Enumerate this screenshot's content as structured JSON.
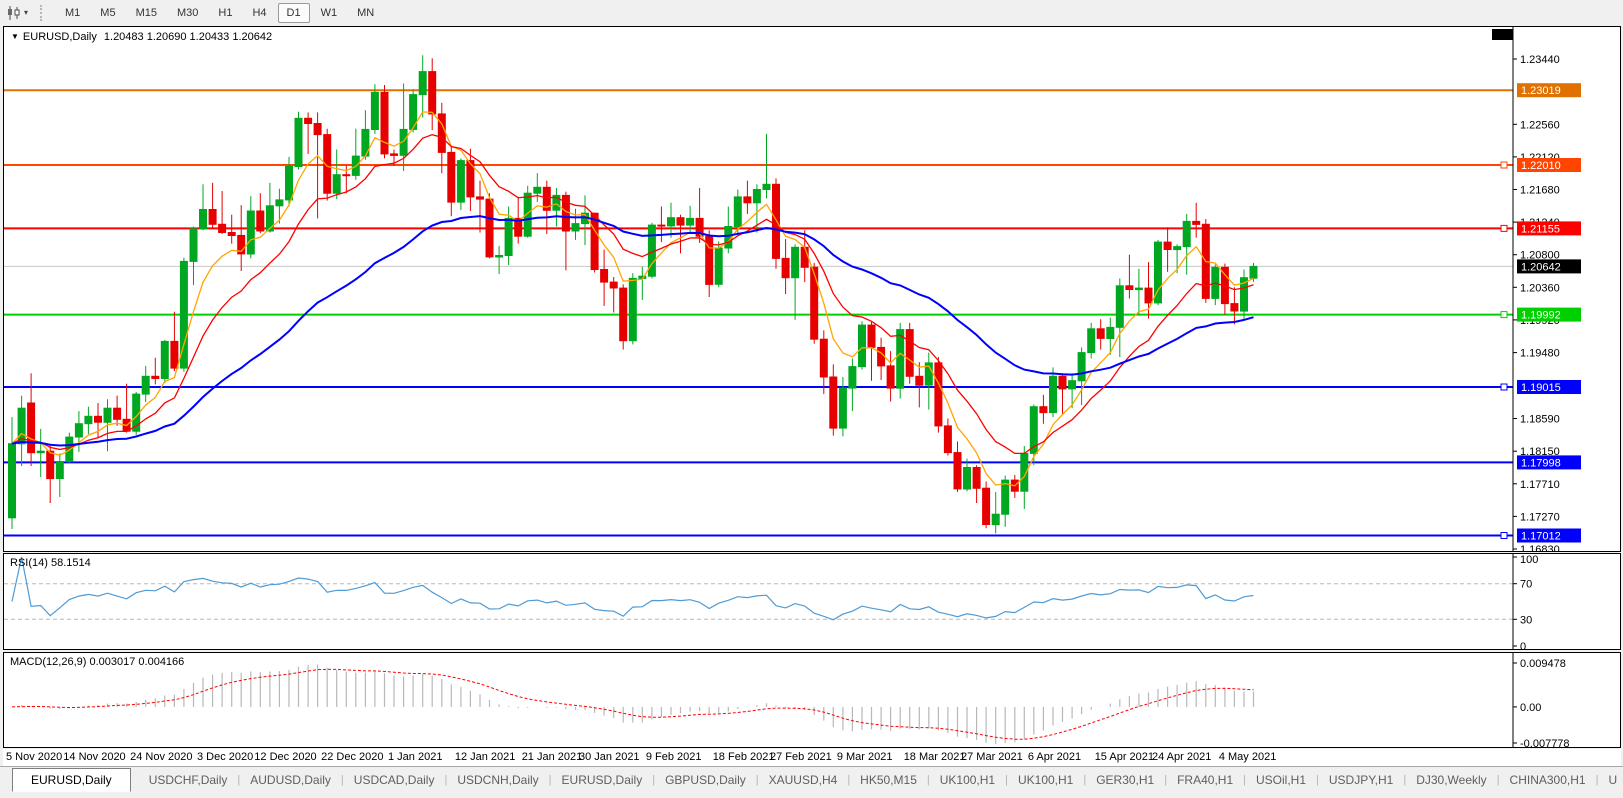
{
  "toolbar": {
    "chart_tool_icon": "candlestick-chart-icon",
    "dropdown_caret": "▾",
    "timeframes": [
      "M1",
      "M5",
      "M15",
      "M30",
      "H1",
      "H4",
      "D1",
      "W1",
      "MN"
    ],
    "active_timeframe": "D1"
  },
  "chart_header": {
    "collapse_caret": "▼",
    "title": "EURUSD,Daily",
    "ohlc": "1.20483 1.20690 1.20433 1.20642"
  },
  "price_axis": {
    "ticks": [
      "1.23440",
      "1.22560",
      "1.22120",
      "1.21680",
      "1.21240",
      "1.20800",
      "1.20360",
      "1.19920",
      "1.19480",
      "1.18590",
      "1.18150",
      "1.17710",
      "1.17270",
      "1.16830"
    ],
    "current_price": "1.20642"
  },
  "levels": [
    {
      "price": 1.23019,
      "label": "1.23019",
      "color": "#e07000",
      "handle": false
    },
    {
      "price": 1.2201,
      "label": "1.22010",
      "color": "#ff4500",
      "handle": true
    },
    {
      "price": 1.21155,
      "label": "1.21155",
      "color": "#ff0000",
      "handle": true
    },
    {
      "price": 1.19992,
      "label": "1.19992",
      "color": "#00d000",
      "handle": true
    },
    {
      "price": 1.19015,
      "label": "1.19015",
      "color": "#0000ff",
      "handle": true
    },
    {
      "price": 1.17998,
      "label": "1.17998",
      "color": "#0000ff",
      "handle": false
    },
    {
      "price": 1.17012,
      "label": "1.17012",
      "color": "#0000ff",
      "handle": true
    }
  ],
  "rsi_panel": {
    "label": "RSI(14) 58.1514",
    "ticks": [
      100,
      70,
      30,
      0
    ],
    "levels": [
      70,
      30
    ],
    "line_color": "#4f9bd5"
  },
  "macd_panel": {
    "label": "MACD(12,26,9) 0.003017 0.004166",
    "ticks": [
      "0.009478",
      "0.00",
      "-0.007778"
    ],
    "histogram_color": "#b8b8b8",
    "signal_color": "#ff0000"
  },
  "date_axis": {
    "labels": [
      "5 Nov 2020",
      "14 Nov 2020",
      "24 Nov 2020",
      "3 Dec 2020",
      "12 Dec 2020",
      "22 Dec 2020",
      "1 Jan 2021",
      "12 Jan 2021",
      "21 Jan 2021",
      "30 Jan 2021",
      "9 Feb 2021",
      "18 Feb 2021",
      "27 Feb 2021",
      "9 Mar 2021",
      "18 Mar 2021",
      "27 Mar 2021",
      "6 Apr 2021",
      "15 Apr 2021",
      "24 Apr 2021",
      "4 May 2021"
    ],
    "indices": [
      0,
      6,
      13,
      20,
      26,
      33,
      40,
      47,
      54,
      60,
      67,
      74,
      80,
      87,
      94,
      100,
      107,
      114,
      120,
      127
    ]
  },
  "tabs": {
    "items": [
      "EURUSD,Daily",
      "USDCHF,Daily",
      "AUDUSD,Daily",
      "USDCAD,Daily",
      "USDCNH,Daily",
      "EURUSD,Daily",
      "GBPUSD,Daily",
      "XAUUSD,H4",
      "HK50,M15",
      "UK100,H1",
      "UK100,H1",
      "GER30,H1",
      "FRA40,H1",
      "USOil,H1",
      "USDJPY,H1",
      "DJ30,Weekly",
      "CHINA300,H1",
      "U"
    ],
    "active_index": 0
  },
  "tab_scroll": {
    "left": "◄",
    "right": "►"
  },
  "colors": {
    "candle_up": "#00a822",
    "candle_down": "#e60000",
    "current_price_line": "#c8c8c8",
    "current_price_badge": "#000000"
  },
  "chart_data": {
    "type": "candlestick",
    "symbol": "EURUSD",
    "timeframe": "Daily",
    "title": "EURUSD,Daily",
    "price_scale": {
      "min": 1.16803,
      "max": 1.23872
    },
    "overlays": [
      {
        "name": "fast-ma-line",
        "period": 6,
        "color": "#ffa500",
        "width": 1.3
      },
      {
        "name": "medium-ma-line",
        "period": 13,
        "color": "#ff0000",
        "width": 1.3
      },
      {
        "name": "slow-ma-line",
        "period": 40,
        "color": "#0000ff",
        "width": 2
      }
    ],
    "indicators": [
      {
        "name": "RSI",
        "period": 14,
        "value": 58.1514
      },
      {
        "name": "MACD",
        "fast": 12,
        "slow": 26,
        "signal": 9,
        "value": 0.003017,
        "signal_value": 0.004166
      }
    ],
    "open_high_low_close": [
      [
        1.1725,
        1.1861,
        1.171,
        1.1825
      ],
      [
        1.1825,
        1.189,
        1.1795,
        1.1873
      ],
      [
        1.188,
        1.192,
        1.1795,
        1.1813
      ],
      [
        1.1813,
        1.1845,
        1.178,
        1.1815
      ],
      [
        1.1815,
        1.1823,
        1.1745,
        1.1778
      ],
      [
        1.1778,
        1.1812,
        1.1753,
        1.1801
      ],
      [
        1.1801,
        1.184,
        1.1799,
        1.1834
      ],
      [
        1.1834,
        1.1869,
        1.1814,
        1.1852
      ],
      [
        1.1852,
        1.1875,
        1.1838,
        1.1862
      ],
      [
        1.1862,
        1.188,
        1.1833,
        1.1854
      ],
      [
        1.1854,
        1.1885,
        1.1815,
        1.1873
      ],
      [
        1.1873,
        1.189,
        1.1849,
        1.1858
      ],
      [
        1.1858,
        1.1906,
        1.184,
        1.1842
      ],
      [
        1.1842,
        1.1895,
        1.1837,
        1.1892
      ],
      [
        1.1892,
        1.193,
        1.1881,
        1.1916
      ],
      [
        1.1916,
        1.1941,
        1.1905,
        1.1913
      ],
      [
        1.1913,
        1.1965,
        1.1907,
        1.1963
      ],
      [
        1.1963,
        1.2003,
        1.1923,
        1.1927
      ],
      [
        1.1927,
        1.2076,
        1.1922,
        1.2071
      ],
      [
        1.2071,
        1.2118,
        1.2039,
        1.2115
      ],
      [
        1.2115,
        1.2175,
        1.2113,
        1.2141
      ],
      [
        1.2141,
        1.2177,
        1.2115,
        1.2121
      ],
      [
        1.2121,
        1.2166,
        1.2108,
        1.211
      ],
      [
        1.211,
        1.2134,
        1.2095,
        1.2106
      ],
      [
        1.2106,
        1.2147,
        1.2058,
        1.2081
      ],
      [
        1.2081,
        1.2159,
        1.2075,
        1.2139
      ],
      [
        1.2139,
        1.2163,
        1.2109,
        1.2112
      ],
      [
        1.2112,
        1.2177,
        1.211,
        1.2146
      ],
      [
        1.2146,
        1.2169,
        1.2122,
        1.2154
      ],
      [
        1.2154,
        1.2212,
        1.2145,
        1.2199
      ],
      [
        1.2199,
        1.2273,
        1.2195,
        1.2264
      ],
      [
        1.2264,
        1.2272,
        1.2216,
        1.2257
      ],
      [
        1.2257,
        1.2272,
        1.2129,
        1.2242
      ],
      [
        1.2242,
        1.225,
        1.2153,
        1.2163
      ],
      [
        1.2163,
        1.2222,
        1.2155,
        1.2188
      ],
      [
        1.2188,
        1.22,
        1.2163,
        1.2187
      ],
      [
        1.2187,
        1.225,
        1.2181,
        1.2213
      ],
      [
        1.2213,
        1.2275,
        1.2208,
        1.2249
      ],
      [
        1.2249,
        1.231,
        1.2243,
        1.2299
      ],
      [
        1.2299,
        1.2309,
        1.221,
        1.2216
      ],
      [
        1.2216,
        1.2222,
        1.22,
        1.2214
      ],
      [
        1.2214,
        1.2311,
        1.2193,
        1.2249
      ],
      [
        1.2249,
        1.2303,
        1.2245,
        1.2296
      ],
      [
        1.2296,
        1.2349,
        1.2265,
        1.2327
      ],
      [
        1.2327,
        1.2345,
        1.2248,
        1.227
      ],
      [
        1.227,
        1.2285,
        1.219,
        1.2218
      ],
      [
        1.2218,
        1.2226,
        1.2132,
        1.2151
      ],
      [
        1.2151,
        1.221,
        1.214,
        1.2207
      ],
      [
        1.2207,
        1.2223,
        1.2139,
        1.2158
      ],
      [
        1.2158,
        1.218,
        1.211,
        1.2155
      ],
      [
        1.2155,
        1.2163,
        1.2075,
        1.2077
      ],
      [
        1.2077,
        1.2092,
        1.2054,
        1.2079
      ],
      [
        1.2079,
        1.2145,
        1.2066,
        1.2129
      ],
      [
        1.2129,
        1.2158,
        1.2095,
        1.2105
      ],
      [
        1.2105,
        1.2173,
        1.2103,
        1.2163
      ],
      [
        1.2163,
        1.219,
        1.2151,
        1.2171
      ],
      [
        1.2171,
        1.218,
        1.2108,
        1.214
      ],
      [
        1.214,
        1.217,
        1.2118,
        1.216
      ],
      [
        1.216,
        1.2165,
        1.2059,
        1.2112
      ],
      [
        1.2112,
        1.2142,
        1.21,
        1.2122
      ],
      [
        1.2122,
        1.216,
        1.2093,
        1.2136
      ],
      [
        1.2136,
        1.2137,
        1.2056,
        1.206
      ],
      [
        1.206,
        1.2087,
        1.2011,
        1.2043
      ],
      [
        1.2043,
        1.205,
        1.2002,
        1.2035
      ],
      [
        1.2035,
        1.204,
        1.1952,
        1.1964
      ],
      [
        1.1964,
        1.2055,
        1.1959,
        1.2048
      ],
      [
        1.2048,
        1.2064,
        1.2019,
        1.2051
      ],
      [
        1.2051,
        1.2123,
        1.2048,
        1.212
      ],
      [
        1.212,
        1.2145,
        1.2097,
        1.2119
      ],
      [
        1.2119,
        1.215,
        1.2103,
        1.213
      ],
      [
        1.213,
        1.2134,
        1.2082,
        1.212
      ],
      [
        1.212,
        1.2146,
        1.2108,
        1.2129
      ],
      [
        1.2129,
        1.217,
        1.2096,
        1.2105
      ],
      [
        1.2105,
        1.2113,
        1.2023,
        1.204
      ],
      [
        1.204,
        1.2098,
        1.2036,
        1.2089
      ],
      [
        1.2089,
        1.2145,
        1.2082,
        1.2118
      ],
      [
        1.2118,
        1.2168,
        1.2107,
        1.2158
      ],
      [
        1.2158,
        1.218,
        1.2135,
        1.215
      ],
      [
        1.215,
        1.2175,
        1.211,
        1.2168
      ],
      [
        1.2168,
        1.2243,
        1.2156,
        1.2175
      ],
      [
        1.2175,
        1.2183,
        1.2061,
        1.2075
      ],
      [
        1.2075,
        1.2101,
        1.2027,
        1.2049
      ],
      [
        1.2049,
        1.2094,
        1.1992,
        1.209
      ],
      [
        1.209,
        1.2113,
        1.2043,
        1.2063
      ],
      [
        1.2063,
        1.2069,
        1.196,
        1.1966
      ],
      [
        1.1966,
        1.1978,
        1.1892,
        1.1915
      ],
      [
        1.1915,
        1.1932,
        1.1836,
        1.1846
      ],
      [
        1.1846,
        1.1915,
        1.1835,
        1.19
      ],
      [
        1.19,
        1.194,
        1.1869,
        1.1929
      ],
      [
        1.1929,
        1.199,
        1.1925,
        1.1985
      ],
      [
        1.1985,
        1.199,
        1.191,
        1.1955
      ],
      [
        1.1955,
        1.1968,
        1.1911,
        1.193
      ],
      [
        1.193,
        1.195,
        1.1882,
        1.19
      ],
      [
        1.19,
        1.1988,
        1.1886,
        1.1979
      ],
      [
        1.1979,
        1.1988,
        1.1906,
        1.1916
      ],
      [
        1.1916,
        1.1935,
        1.1874,
        1.1904
      ],
      [
        1.1904,
        1.1948,
        1.1871,
        1.1934
      ],
      [
        1.1934,
        1.1942,
        1.184,
        1.1849
      ],
      [
        1.1849,
        1.1859,
        1.1809,
        1.1813
      ],
      [
        1.1813,
        1.1828,
        1.176,
        1.1764
      ],
      [
        1.1764,
        1.1805,
        1.1761,
        1.1793
      ],
      [
        1.1793,
        1.1796,
        1.1745,
        1.1765
      ],
      [
        1.1765,
        1.1774,
        1.1711,
        1.1716
      ],
      [
        1.1716,
        1.176,
        1.1704,
        1.173
      ],
      [
        1.173,
        1.1782,
        1.1713,
        1.1776
      ],
      [
        1.1776,
        1.1783,
        1.1752,
        1.1761
      ],
      [
        1.1761,
        1.1822,
        1.1737,
        1.1812
      ],
      [
        1.1812,
        1.1878,
        1.1796,
        1.1875
      ],
      [
        1.1875,
        1.1891,
        1.1852,
        1.1867
      ],
      [
        1.1867,
        1.1928,
        1.1861,
        1.1916
      ],
      [
        1.1916,
        1.192,
        1.1865,
        1.1899
      ],
      [
        1.1899,
        1.192,
        1.1873,
        1.191
      ],
      [
        1.191,
        1.1955,
        1.1877,
        1.1948
      ],
      [
        1.1948,
        1.1988,
        1.194,
        1.198
      ],
      [
        1.198,
        1.1993,
        1.1952,
        1.1967
      ],
      [
        1.1967,
        1.1995,
        1.1945,
        1.1982
      ],
      [
        1.1982,
        1.2048,
        1.1942,
        1.2038
      ],
      [
        1.2038,
        1.208,
        1.2021,
        1.2033
      ],
      [
        1.2033,
        1.2061,
        1.1999,
        1.2035
      ],
      [
        1.2035,
        1.207,
        1.1994,
        1.2015
      ],
      [
        1.2015,
        1.21,
        1.2012,
        1.2097
      ],
      [
        1.2097,
        1.2117,
        1.2057,
        1.2087
      ],
      [
        1.2087,
        1.2094,
        1.2055,
        1.2091
      ],
      [
        1.2091,
        1.2135,
        1.2053,
        1.2125
      ],
      [
        1.2125,
        1.215,
        1.2103,
        1.2121
      ],
      [
        1.2121,
        1.2128,
        1.2015,
        1.2021
      ],
      [
        1.2021,
        1.2067,
        1.2012,
        1.2063
      ],
      [
        1.2063,
        1.2068,
        1.1999,
        1.2014
      ],
      [
        1.2014,
        1.2036,
        1.1986,
        1.2004
      ],
      [
        1.2004,
        1.206,
        1.1993,
        1.2049
      ],
      [
        1.20483,
        1.2069,
        1.20433,
        1.20642
      ]
    ]
  }
}
